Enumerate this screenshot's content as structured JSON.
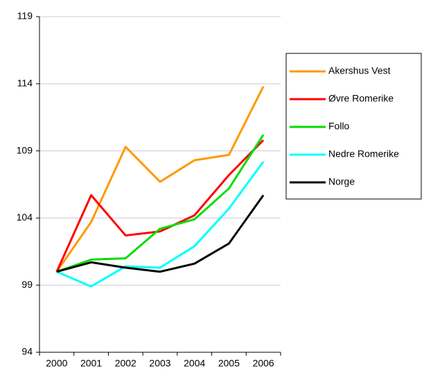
{
  "chart_data": {
    "type": "line",
    "categories": [
      "2000",
      "2001",
      "2002",
      "2003",
      "2004",
      "2005",
      "2006"
    ],
    "series": [
      {
        "name": "Akershus Vest",
        "color": "#ff9900",
        "values": [
          100,
          103.7,
          109.3,
          106.7,
          108.3,
          108.7,
          113.8
        ]
      },
      {
        "name": "Øvre Romerike",
        "color": "#ff0000",
        "values": [
          100,
          105.7,
          102.7,
          103.0,
          104.2,
          107.2,
          109.8
        ]
      },
      {
        "name": "Follo",
        "color": "#00dd00",
        "values": [
          100,
          100.9,
          101.0,
          103.2,
          103.9,
          106.2,
          110.2
        ]
      },
      {
        "name": "Nedre Romerike",
        "color": "#00ffff",
        "values": [
          100,
          98.9,
          100.4,
          100.3,
          101.9,
          104.7,
          108.2
        ]
      },
      {
        "name": "Norge",
        "color": "#000000",
        "values": [
          100,
          100.7,
          100.3,
          100.0,
          100.6,
          102.1,
          105.7
        ]
      }
    ],
    "ylim": [
      94,
      119
    ],
    "yticks": [
      94,
      99,
      104,
      109,
      114,
      119
    ],
    "grid": true,
    "legend": "right"
  }
}
